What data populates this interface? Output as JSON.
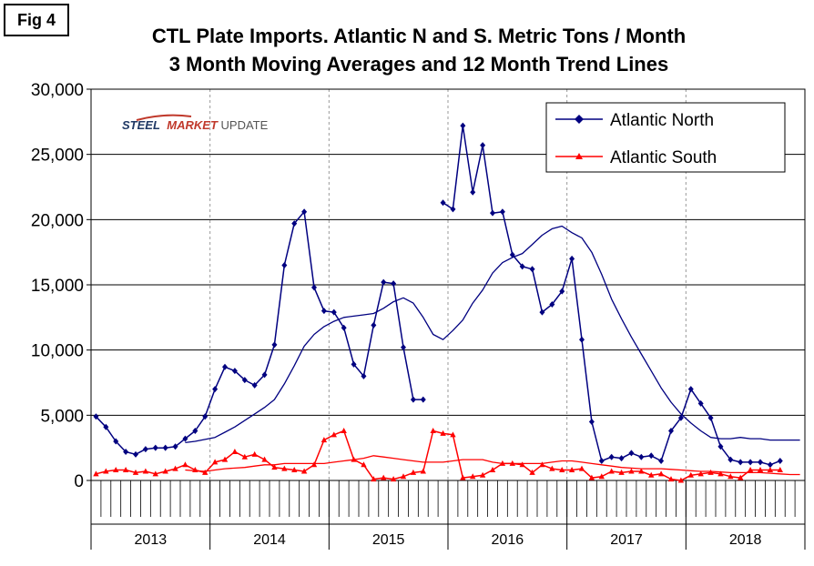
{
  "figure_label": "Fig 4",
  "title_line1": "CTL Plate Imports. Atlantic N and S. Metric Tons / Month",
  "title_line2": "3 Month Moving Averages and 12 Month Trend Lines",
  "watermark": {
    "part1": "STEEL",
    "part2": "MARKET",
    "part3": " UPDATE",
    "color_dark": "#1f3864",
    "color_red": "#c0392b",
    "color_gray": "#555555"
  },
  "chart_data": {
    "type": "line",
    "title": "CTL Plate Imports. Atlantic N and S. Metric Tons / Month",
    "subtitle": "3 Month Moving Averages and 12 Month Trend Lines",
    "xlabel": "",
    "ylabel": "",
    "ylim": [
      0,
      30000
    ],
    "yticks": [
      0,
      5000,
      10000,
      15000,
      20000,
      25000,
      30000
    ],
    "ytick_labels": [
      "0",
      "5,000",
      "10,000",
      "15,000",
      "20,000",
      "25,000",
      "30,000"
    ],
    "years": [
      "2013",
      "2014",
      "2015",
      "2016",
      "2017",
      "2018"
    ],
    "months_total": 72,
    "grid": "vertical dashed at year boundaries",
    "legend_position": "top-right",
    "series": [
      {
        "name": "Atlantic North",
        "color": "#000080",
        "marker": "diamond",
        "start_month": 1,
        "values": [
          4900,
          4100,
          3000,
          2200,
          2000,
          2400,
          2500,
          2500,
          2600,
          3200,
          3800,
          4900,
          7000,
          8700,
          8400,
          7700,
          7300,
          8100,
          10400,
          16500,
          19700,
          20600,
          14800,
          13000,
          12900,
          11700,
          8900,
          8000,
          11900,
          15200,
          15100,
          10200,
          6200,
          6200,
          null,
          21300,
          20800,
          27200,
          22100,
          25700,
          20500,
          20600,
          17300,
          16400,
          16200,
          12900,
          13500,
          14500,
          17000,
          10800,
          4500,
          1500,
          1800,
          1700,
          2100,
          1800,
          1900,
          1500,
          3800,
          4800,
          7000,
          5900,
          4800,
          2600,
          1600,
          1400,
          1400,
          1400,
          1200,
          1500
        ]
      },
      {
        "name": "Atlantic South",
        "color": "#ff0000",
        "marker": "triangle",
        "start_month": 1,
        "values": [
          500,
          700,
          800,
          800,
          600,
          700,
          500,
          700,
          900,
          1200,
          800,
          600,
          1400,
          1600,
          2200,
          1800,
          2000,
          1600,
          1000,
          900,
          800,
          700,
          1200,
          3100,
          3500,
          3800,
          1600,
          1200,
          100,
          200,
          100,
          300,
          600,
          700,
          3800,
          3600,
          3500,
          200,
          300,
          400,
          800,
          1300,
          1300,
          1200,
          600,
          1200,
          900,
          800,
          800,
          900,
          200,
          300,
          700,
          600,
          700,
          700,
          400,
          500,
          100,
          0,
          400,
          500,
          600,
          500,
          300,
          200,
          800,
          800,
          800,
          800
        ]
      },
      {
        "name": "Atlantic North 12 Month Trend",
        "color": "#000080",
        "start_month": 10,
        "values": [
          2900,
          3000,
          3150,
          3300,
          3700,
          4100,
          4600,
          5100,
          5600,
          6200,
          7400,
          8800,
          10300,
          11200,
          11800,
          12200,
          12500,
          12600,
          12700,
          12800,
          13200,
          13700,
          14000,
          13600,
          12500,
          11200,
          10800,
          11500,
          12300,
          13600,
          14600,
          15900,
          16700,
          17100,
          17400,
          18100,
          18800,
          19300,
          19500,
          19000,
          18600,
          17500,
          15800,
          13900,
          12400,
          11000,
          9700,
          8400,
          7100,
          6000,
          5100,
          4400,
          3800,
          3300,
          3200,
          3200,
          3300,
          3200,
          3200,
          3100,
          3100,
          3100,
          3100
        ]
      },
      {
        "name": "Atlantic South 12 Month Trend",
        "color": "#ff0000",
        "start_month": 10,
        "values": [
          800,
          750,
          700,
          800,
          900,
          950,
          1000,
          1100,
          1200,
          1200,
          1300,
          1300,
          1300,
          1300,
          1300,
          1400,
          1500,
          1600,
          1700,
          1900,
          1800,
          1700,
          1600,
          1500,
          1400,
          1400,
          1400,
          1500,
          1600,
          1600,
          1600,
          1400,
          1300,
          1300,
          1300,
          1300,
          1300,
          1400,
          1500,
          1500,
          1400,
          1300,
          1200,
          1100,
          1000,
          950,
          900,
          900,
          900,
          850,
          800,
          750,
          700,
          700,
          650,
          600,
          600,
          600,
          600,
          550,
          500,
          450,
          450
        ]
      }
    ],
    "legend": [
      "Atlantic North",
      "Atlantic South"
    ]
  }
}
